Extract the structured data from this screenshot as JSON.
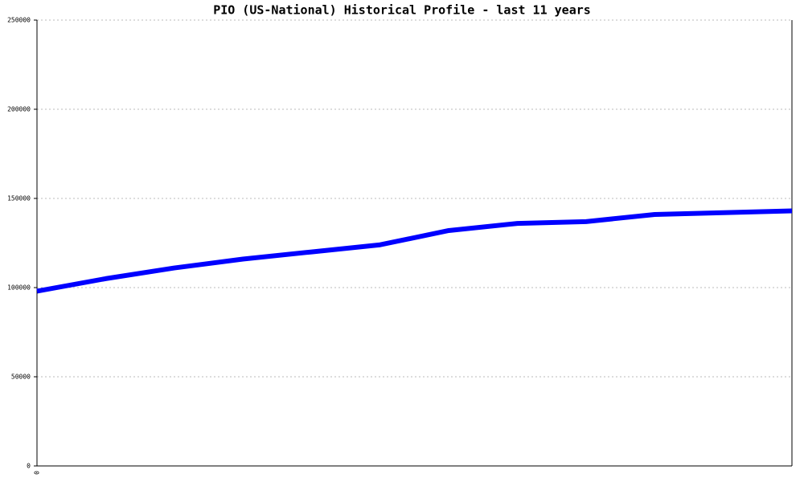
{
  "chart_data": {
    "type": "line",
    "title": "PIO (US-National) Historical Profile - last 11 years",
    "categories": [
      "0",
      null,
      null,
      null,
      null,
      null,
      null,
      null,
      null,
      null,
      null,
      null
    ],
    "series": [
      {
        "name": "PIO",
        "color": "#0000ff",
        "values": [
          98000,
          105000,
          111000,
          116000,
          120000,
          124000,
          132000,
          136000,
          137000,
          141000,
          142000,
          143000
        ]
      }
    ],
    "ylim": [
      0,
      250000
    ],
    "yticks": [
      0,
      50000,
      100000,
      150000,
      200000,
      250000
    ],
    "grid": true
  }
}
